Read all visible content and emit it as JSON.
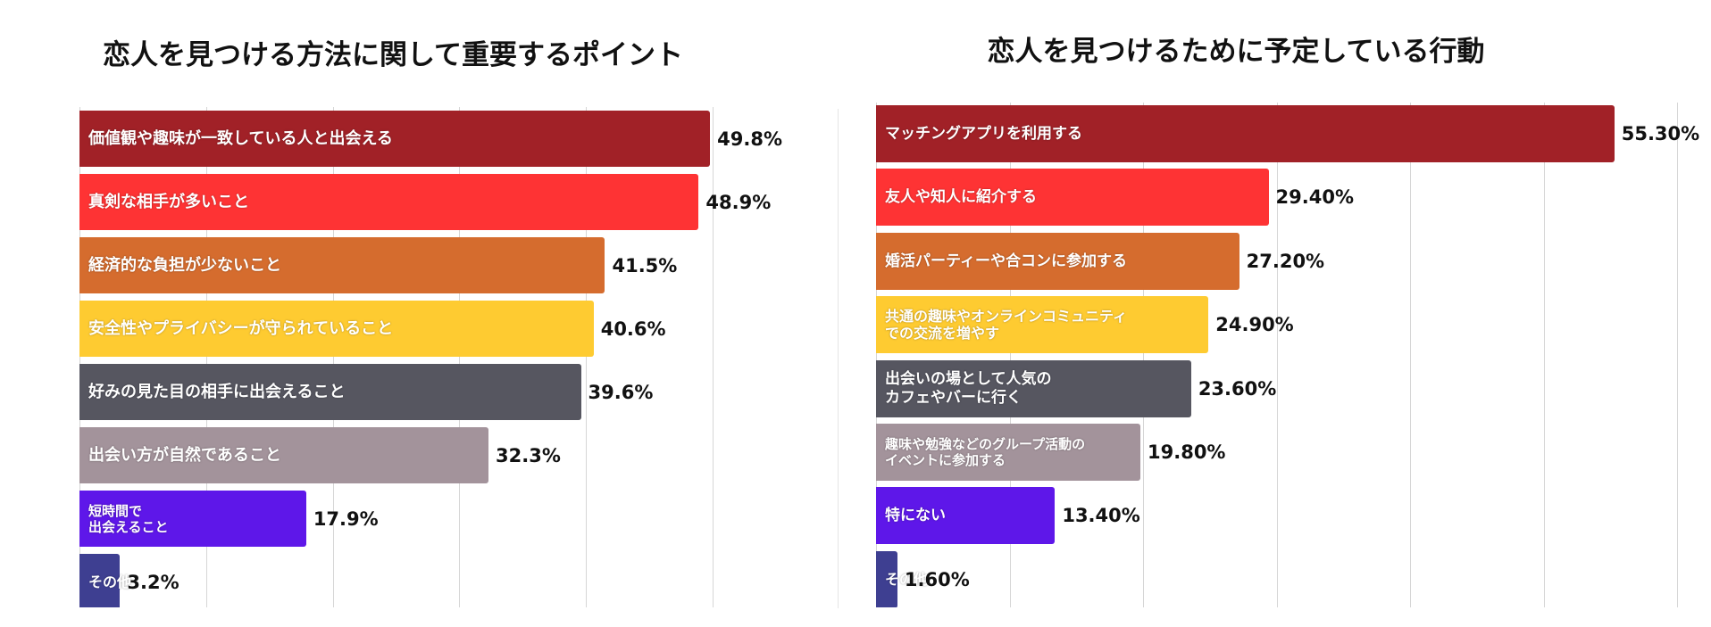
{
  "chart_data": [
    {
      "type": "bar",
      "orientation": "horizontal",
      "title": "恋人を見つける方法に関して重要するポイント",
      "categories": [
        "価値観や趣味が一致している人と出会える",
        "真剣な相手が多いこと",
        "経済的な負担が少ないこと",
        "安全性やプライバシーが守られていること",
        "好みの見た目の相手に出会えること",
        "出会い方が自然であること",
        "短時間で\n出会えること",
        "その他"
      ],
      "values": [
        49.8,
        48.9,
        41.5,
        40.6,
        39.6,
        32.3,
        17.9,
        3.2
      ],
      "value_labels": [
        "49.8%",
        "48.9%",
        "41.5%",
        "40.6%",
        "39.6%",
        "32.3%",
        "17.9%",
        "3.2%"
      ],
      "colors": [
        "#a12127",
        "#fe3334",
        "#d56c2e",
        "#fecb31",
        "#565660",
        "#a3939b",
        "#5e17e9",
        "#3e3f91"
      ],
      "xlim": [
        0,
        50
      ],
      "xticks": [
        0,
        10,
        20,
        30,
        40,
        50
      ],
      "grid": true
    },
    {
      "type": "bar",
      "orientation": "horizontal",
      "title": "恋人を見つけるために予定している行動",
      "categories": [
        "マッチングアプリを利用する",
        "友人や知人に紹介する",
        "婚活パーティーや合コンに参加する",
        "共通の趣味やオンラインコミュニティ\nでの交流を増やす",
        "出会いの場として人気の\nカフェやバーに行く",
        "趣味や勉強などのグループ活動の\nイベントに参加する",
        "特にない",
        "その他"
      ],
      "values": [
        55.3,
        29.4,
        27.2,
        24.9,
        23.6,
        19.8,
        13.4,
        1.6
      ],
      "value_labels": [
        "55.30%",
        "29.40%",
        "27.20%",
        "24.90%",
        "23.60%",
        "19.80%",
        "13.40%",
        "1.60%"
      ],
      "colors": [
        "#a12127",
        "#fe3334",
        "#d56c2e",
        "#fecb31",
        "#565660",
        "#a3939b",
        "#5e17e9",
        "#3e3f91"
      ],
      "xlim": [
        0,
        60
      ],
      "xticks": [
        0,
        10,
        20,
        30,
        40,
        50,
        60
      ],
      "grid": true
    }
  ]
}
